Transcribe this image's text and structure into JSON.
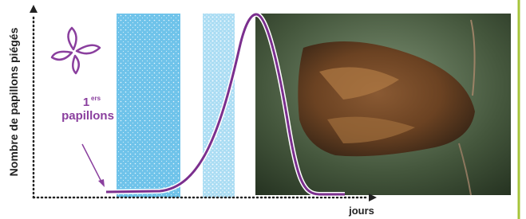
{
  "axes": {
    "y_label": "Nombre de papillons piégés",
    "x_label": "jours"
  },
  "annotation": {
    "number": "1",
    "superscript": "ers",
    "text": "papillons"
  }
}
